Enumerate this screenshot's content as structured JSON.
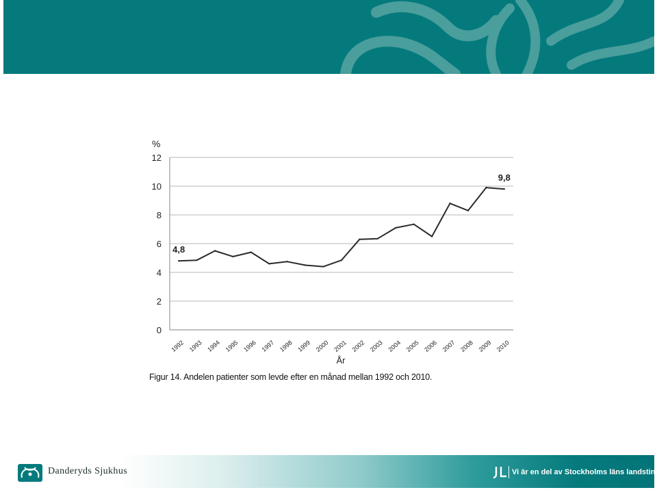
{
  "slide": {
    "caption": "Figur 14. Andelen patienter som levde efter en månad mellan 1992 och 2010.",
    "footer_logo_text": "Danderyds Sjukhus",
    "footer_tagline": "Vi är en del av Stockholms läns landsting",
    "colors": {
      "header": "#057a7d",
      "accent": "#057a7d",
      "line": "#2a2a2a"
    },
    "icons": {
      "footer_logo": "danderyd-flower-icon",
      "footer_mark": "sll-logo-icon"
    }
  },
  "chart_data": {
    "type": "line",
    "ylabel": "%",
    "xlabel": "År",
    "ylim": [
      0,
      12
    ],
    "yticks": [
      0,
      2,
      4,
      6,
      8,
      10,
      12
    ],
    "grid": true,
    "categories": [
      "1992",
      "1993",
      "1994",
      "1995",
      "1996",
      "1997",
      "1998",
      "1999",
      "2000",
      "2001",
      "2002",
      "2003",
      "2004",
      "2005",
      "2006",
      "2007",
      "2008",
      "2009",
      "2010"
    ],
    "series": [
      {
        "values": [
          4.8,
          4.85,
          5.5,
          5.1,
          5.4,
          4.6,
          4.75,
          4.5,
          4.4,
          4.85,
          6.3,
          6.35,
          7.1,
          7.35,
          6.5,
          8.8,
          8.3,
          9.9,
          9.8
        ]
      }
    ],
    "annotations": [
      {
        "index": 0,
        "text": "4,8"
      },
      {
        "index": 18,
        "text": "9,8"
      }
    ]
  }
}
